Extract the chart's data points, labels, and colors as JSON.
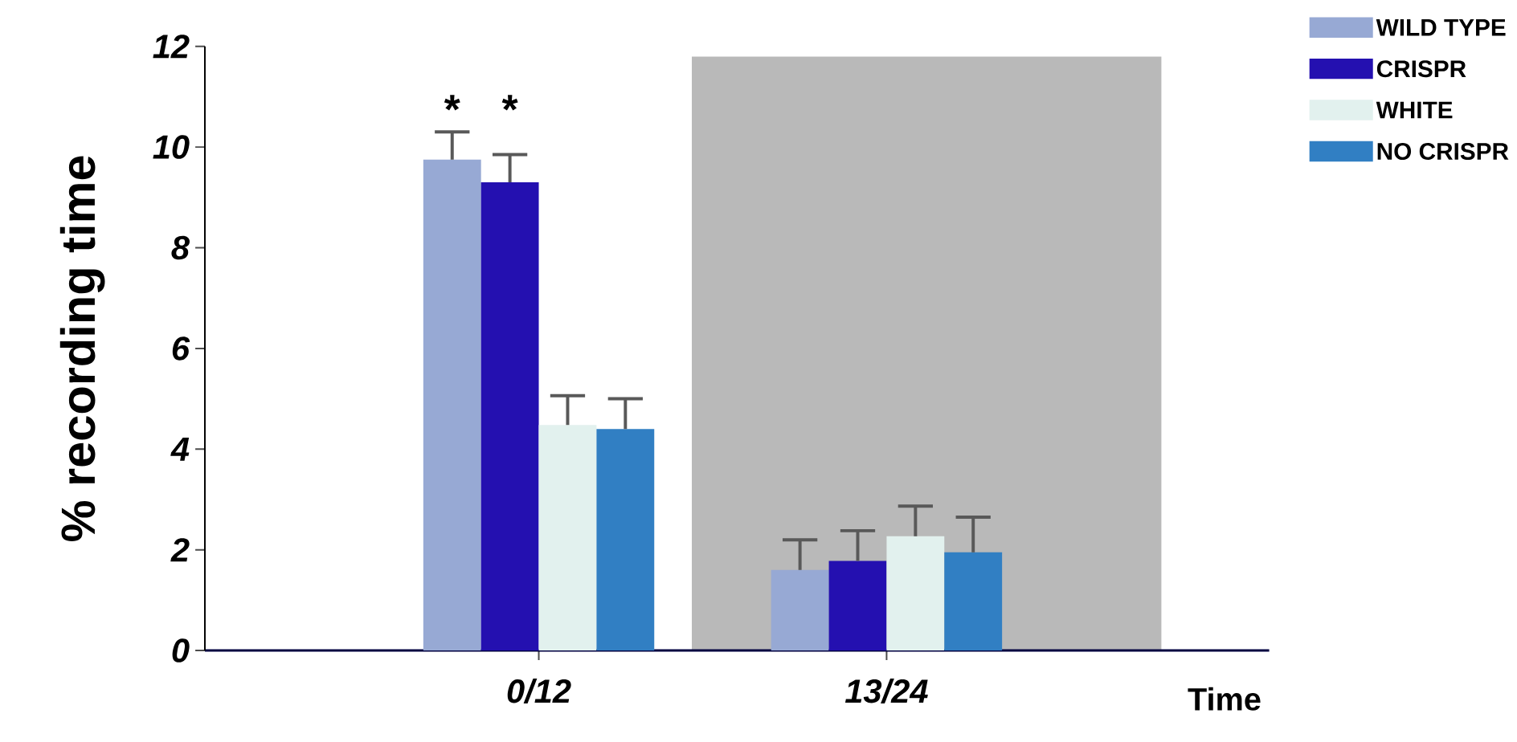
{
  "chart_data": {
    "type": "bar",
    "ylabel": "% recording time",
    "xlabel": "Time",
    "categories": [
      "0/12",
      "13/24"
    ],
    "series": [
      {
        "name": "WILD TYPE",
        "color": "#97a9d4",
        "values": [
          9.75,
          1.6
        ],
        "errors": [
          0.55,
          0.6
        ]
      },
      {
        "name": "CRISPR",
        "color": "#2410b0",
        "values": [
          9.3,
          1.78
        ],
        "errors": [
          0.55,
          0.6
        ]
      },
      {
        "name": "WHITE",
        "color": "#e2f1ee",
        "values": [
          4.48,
          2.27
        ],
        "errors": [
          0.58,
          0.6
        ]
      },
      {
        "name": "NO CRISPR",
        "color": "#317fc3",
        "values": [
          4.4,
          1.95
        ],
        "errors": [
          0.6,
          0.7
        ]
      }
    ],
    "ylim": [
      0,
      12
    ],
    "yticks": [
      0,
      2,
      4,
      6,
      8,
      10,
      12
    ],
    "annotations": [
      "*",
      "*"
    ],
    "legend": "top right",
    "grid": false
  }
}
